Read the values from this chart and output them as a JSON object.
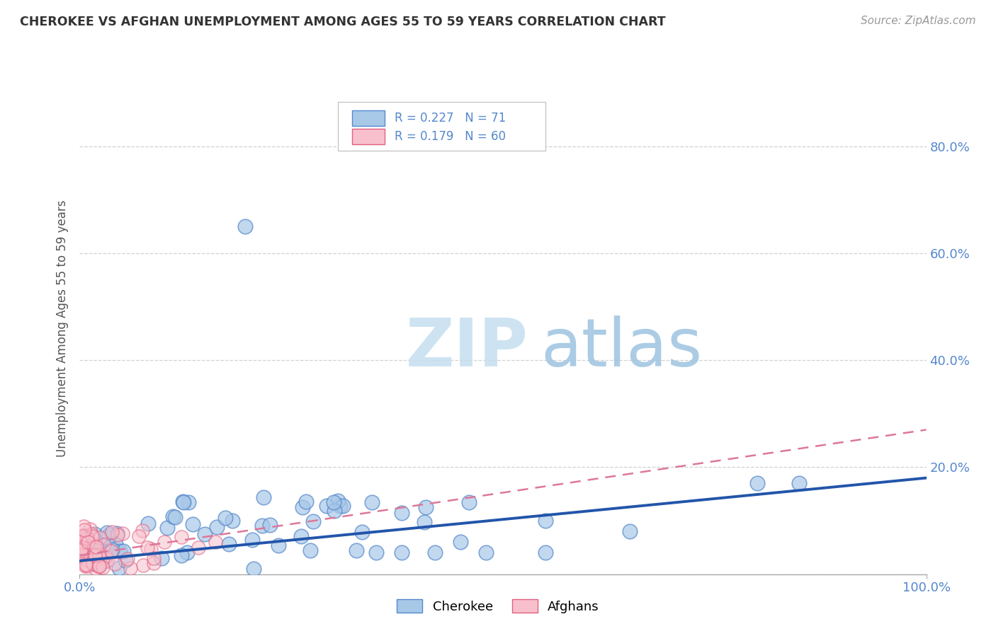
{
  "title": "CHEROKEE VS AFGHAN UNEMPLOYMENT AMONG AGES 55 TO 59 YEARS CORRELATION CHART",
  "source": "Source: ZipAtlas.com",
  "ylabel": "Unemployment Among Ages 55 to 59 years",
  "legend_cherokee": "Cherokee",
  "legend_afghans": "Afghans",
  "r_cherokee": 0.227,
  "n_cherokee": 71,
  "r_afghans": 0.179,
  "n_afghans": 60,
  "cherokee_color": "#a8c8e8",
  "cherokee_edge_color": "#5588cc",
  "afghan_color": "#f8c0cc",
  "afghan_edge_color": "#e06080",
  "cherokee_line_color": "#2255aa",
  "afghan_line_color": "#dd7799",
  "watermark_zip": "#c8dff0",
  "watermark_atlas": "#99bbdd",
  "title_color": "#333333",
  "source_color": "#999999",
  "tick_color": "#5588cc",
  "ylabel_color": "#555555",
  "grid_color": "#cccccc"
}
